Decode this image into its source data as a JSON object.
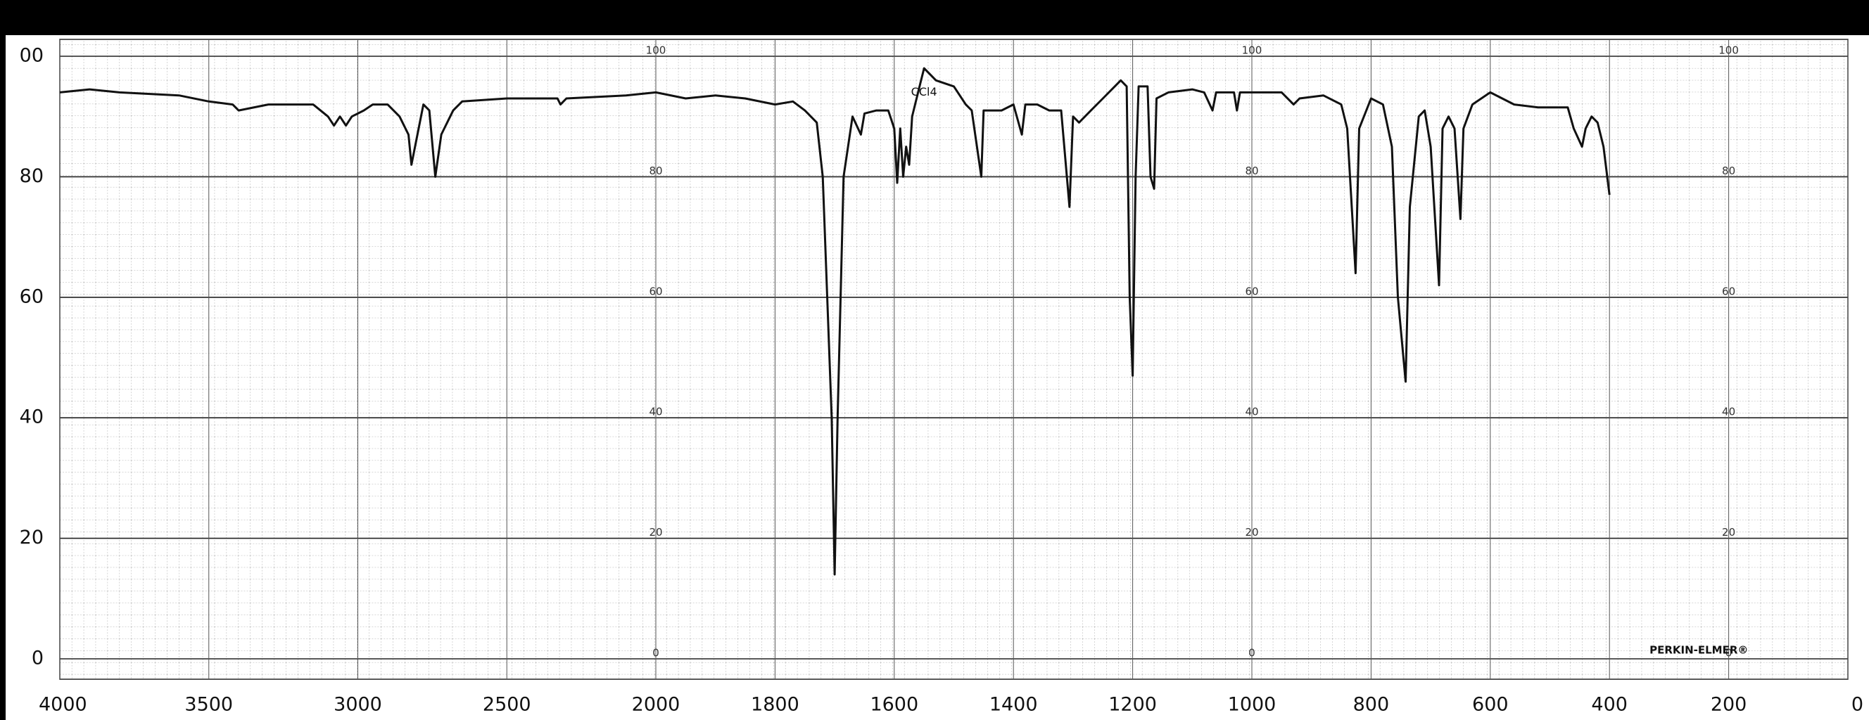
{
  "chart_data": {
    "type": "line",
    "x_scale_change_at": 2000,
    "x_scale_ratio": 2,
    "xlim": [
      4000,
      0
    ],
    "xticks": [
      4000,
      3500,
      3000,
      2500,
      2000,
      1800,
      1600,
      1400,
      1200,
      1000,
      800,
      600,
      400,
      200,
      0
    ],
    "ylim": [
      0,
      100
    ],
    "yticks": [
      0,
      20,
      40,
      60,
      80,
      {
        "value": 100,
        "label": "00"
      }
    ],
    "inner_yticks": [
      100,
      80,
      60,
      40,
      20,
      0
    ],
    "inner_columns": [
      2000,
      1000,
      200
    ],
    "grid": true,
    "color": "#111",
    "annotations": [
      {
        "text": "CCl4",
        "x": 1550,
        "y": 94
      },
      {
        "text": "PERKIN-ELMER®",
        "x": 250,
        "y": 0
      }
    ],
    "x": [
      4000,
      3900,
      3800,
      3600,
      3500,
      3420,
      3400,
      3300,
      3150,
      3100,
      3080,
      3060,
      3040,
      3020,
      2980,
      2950,
      2900,
      2860,
      2830,
      2820,
      2800,
      2780,
      2760,
      2740,
      2720,
      2700,
      2680,
      2650,
      2500,
      2400,
      2330,
      2320,
      2300,
      2100,
      2000,
      1950,
      1900,
      1850,
      1800,
      1770,
      1750,
      1730,
      1720,
      1705,
      1700,
      1695,
      1685,
      1670,
      1656,
      1650,
      1630,
      1610,
      1600,
      1595,
      1590,
      1585,
      1580,
      1575,
      1570,
      1555,
      1550,
      1530,
      1500,
      1480,
      1470,
      1454,
      1450,
      1420,
      1400,
      1386,
      1380,
      1360,
      1340,
      1320,
      1306,
      1300,
      1290,
      1270,
      1250,
      1220,
      1210,
      1205,
      1200,
      1195,
      1190,
      1175,
      1170,
      1164,
      1160,
      1140,
      1100,
      1080,
      1066,
      1060,
      1030,
      1025,
      1020,
      1000,
      950,
      930,
      920,
      880,
      850,
      840,
      826,
      820,
      800,
      780,
      765,
      755,
      742,
      735,
      720,
      710,
      700,
      686,
      680,
      670,
      660,
      650,
      645,
      630,
      600,
      560,
      520,
      470,
      460,
      446,
      440,
      430,
      420,
      410,
      400
    ],
    "values": [
      94,
      94.5,
      94,
      93.5,
      92.5,
      92,
      91,
      92,
      92,
      90,
      88.5,
      90,
      88.5,
      90,
      91,
      92,
      92,
      90,
      87,
      82,
      87,
      92,
      91,
      80,
      87,
      89,
      91,
      92.5,
      93,
      93,
      93,
      92,
      93,
      93.5,
      94,
      93,
      93.5,
      93,
      92,
      92.5,
      91,
      89,
      80,
      40,
      14,
      40,
      80,
      90,
      87,
      90.5,
      91,
      91,
      88,
      79,
      88,
      80,
      85,
      82,
      90,
      96,
      98,
      96,
      95,
      92,
      91,
      80,
      91,
      91,
      92,
      87,
      92,
      92,
      91,
      91,
      75,
      90,
      89,
      91,
      93,
      96,
      95,
      60,
      47,
      80,
      95,
      95,
      80,
      78,
      93,
      94,
      94.5,
      94,
      91,
      94,
      94,
      91,
      94,
      94,
      94,
      92,
      93,
      93.5,
      92,
      88,
      64,
      88,
      93,
      92,
      85,
      60,
      46,
      75,
      90,
      91,
      85,
      62,
      88,
      90,
      88,
      73,
      88,
      92,
      94,
      92,
      91.5,
      91.5,
      88,
      85,
      88,
      90,
      89,
      85,
      77
    ]
  }
}
